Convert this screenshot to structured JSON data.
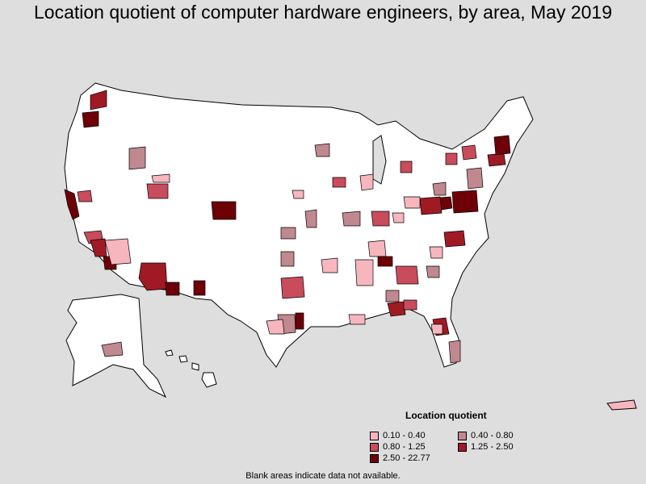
{
  "title": "Location quotient of computer hardware engineers, by area, May 2019",
  "legend": {
    "title": "Location quotient",
    "items": [
      {
        "label": "0.10 - 0.40",
        "color": "#f7b6be"
      },
      {
        "label": "0.40 - 0.80",
        "color": "#c0888f"
      },
      {
        "label": "0.80 - 1.25",
        "color": "#c84c5c"
      },
      {
        "label": "1.25 - 2.50",
        "color": "#a01a24"
      },
      {
        "label": "2.50 - 22.77",
        "color": "#6e0008"
      }
    ]
  },
  "footnote": "Blank areas indicate data not available."
}
